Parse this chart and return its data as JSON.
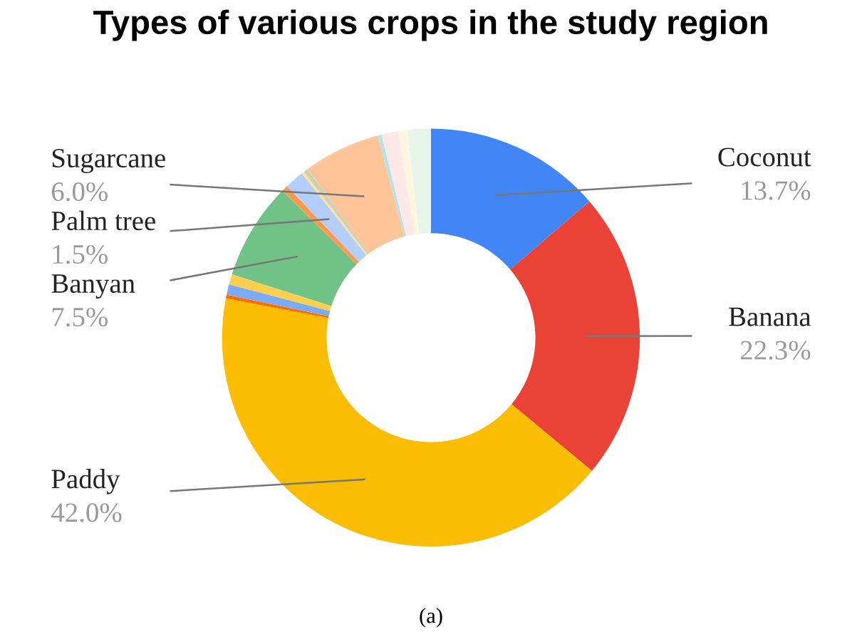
{
  "chart_data": {
    "type": "donut",
    "title": "Types of various crops in the study region",
    "categories": [
      "Coconut",
      "Banana",
      "Paddy",
      null,
      null,
      null,
      "Banyan",
      null,
      "Palm tree",
      null,
      null,
      null,
      "Sugarcane",
      null,
      null,
      null,
      null
    ],
    "values": [
      13.7,
      22.3,
      42.0,
      0.3,
      0.8,
      0.8,
      7.5,
      0.5,
      1.5,
      0.2,
      0.1,
      0.2,
      6.0,
      0.3,
      1.3,
      0.7,
      1.8
    ],
    "value_labels": [
      "13.7%",
      "22.3%",
      "42.0%",
      null,
      null,
      null,
      "7.5%",
      null,
      "1.5%",
      null,
      null,
      null,
      "6.0%",
      null,
      null,
      null,
      null
    ],
    "colors": [
      "#4285f4",
      "#ea4335",
      "#fbbc04",
      "#ff6d01",
      "#7baaf7",
      "#fcd04f",
      "#71c287",
      "#ff994d",
      "#b3cefb",
      "#fde49b",
      "#f7b4ae",
      "#aedcba",
      "#ffc599",
      "#b5e3e7",
      "#fde8e7",
      "#fef6e0",
      "#e6f4ea"
    ],
    "legend": false,
    "annotations": [
      "(a)"
    ]
  }
}
